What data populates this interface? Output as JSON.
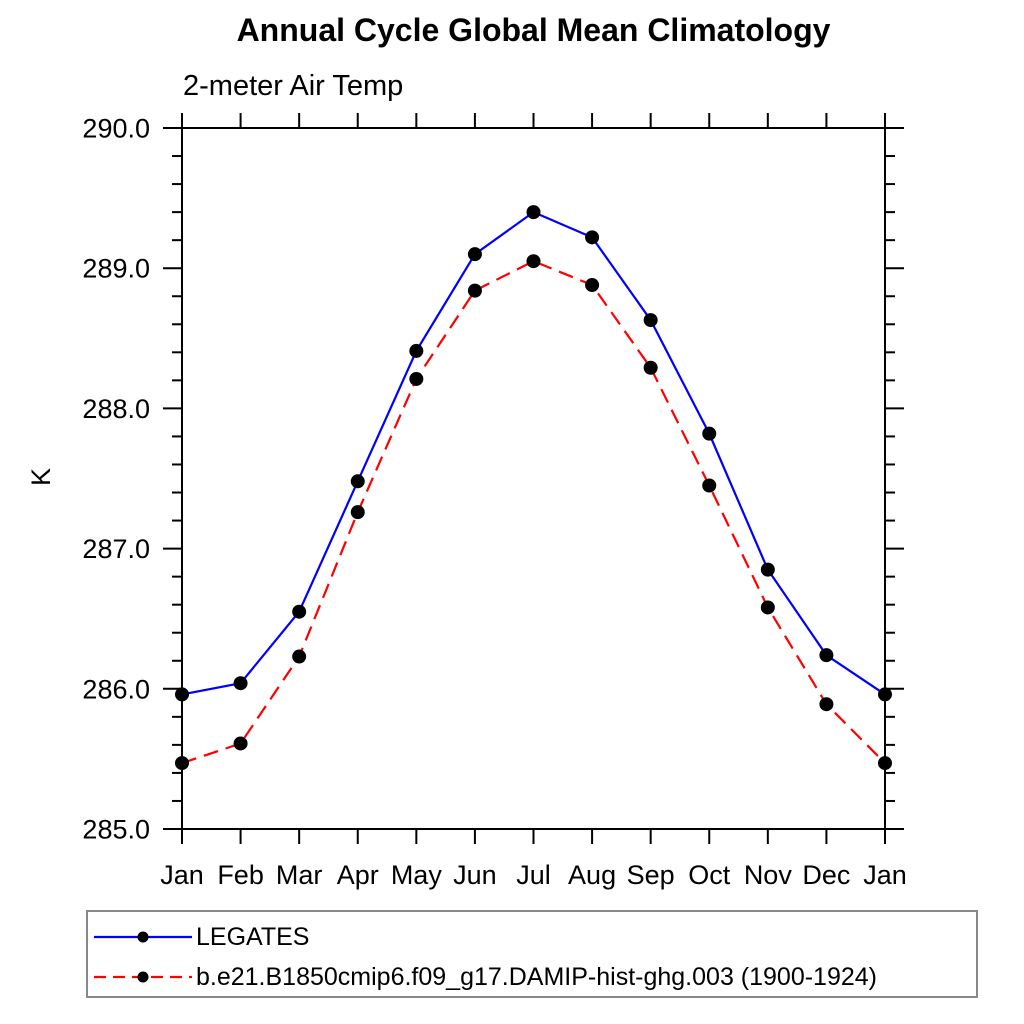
{
  "title": "Annual Cycle Global Mean Climatology",
  "subtitle": "2-meter Air Temp",
  "chart_data": {
    "type": "line",
    "x_tick_labels": [
      "Jan",
      "Feb",
      "Mar",
      "Apr",
      "May",
      "Jun",
      "Jul",
      "Aug",
      "Sep",
      "Oct",
      "Nov",
      "Dec",
      "Jan"
    ],
    "ylabel": "K",
    "ylim": [
      285.0,
      290.0
    ],
    "y_major_ticks": [
      285.0,
      286.0,
      287.0,
      288.0,
      289.0,
      290.0
    ],
    "y_tick_labels": [
      "285.0",
      "286.0",
      "287.0",
      "288.0",
      "289.0",
      "290.0"
    ],
    "y_minor_step": 0.2,
    "grid": false,
    "legend_position": "bottom-left-box",
    "axis_color": "#000000",
    "marker": "filled-circle",
    "marker_color": "#000000",
    "series": [
      {
        "name": "LEGATES",
        "color": "#0000ff",
        "style": "solid",
        "values": [
          285.96,
          286.04,
          286.55,
          287.48,
          288.41,
          289.1,
          289.4,
          289.22,
          288.63,
          287.82,
          286.85,
          286.24,
          285.96
        ]
      },
      {
        "name": "b.e21.B1850cmip6.f09_g17.DAMIP-hist-ghg.003 (1900-1924)",
        "color": "#ff0000",
        "style": "dashed",
        "values": [
          285.47,
          285.61,
          286.23,
          287.26,
          288.21,
          288.84,
          289.05,
          288.88,
          288.29,
          287.45,
          286.58,
          285.89,
          285.47
        ]
      }
    ]
  }
}
